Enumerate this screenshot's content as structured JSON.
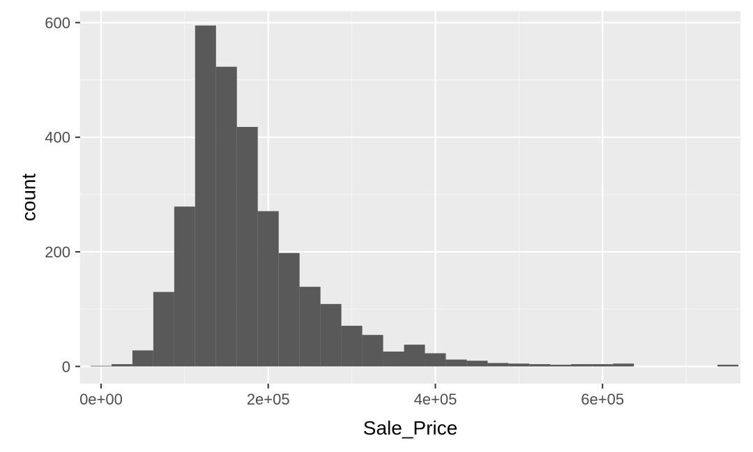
{
  "chart_data": {
    "type": "bar",
    "xlabel": "Sale_Price",
    "ylabel": "count",
    "xlim": [
      -25000,
      765000
    ],
    "ylim": [
      -30,
      620
    ],
    "x_ticks": [
      {
        "value": 0,
        "label": "0e+00"
      },
      {
        "value": 200000,
        "label": "2e+05"
      },
      {
        "value": 400000,
        "label": "4e+05"
      },
      {
        "value": 600000,
        "label": "6e+05"
      }
    ],
    "x_minor_ticks": [
      100000,
      300000,
      500000,
      700000
    ],
    "y_ticks": [
      {
        "value": 0,
        "label": "0"
      },
      {
        "value": 200,
        "label": "200"
      },
      {
        "value": 400,
        "label": "400"
      },
      {
        "value": 600,
        "label": "600"
      }
    ],
    "y_minor_ticks": [
      100,
      300,
      500
    ],
    "bin_width": 25000,
    "bins": [
      {
        "x0": -12500,
        "x1": 12500,
        "count": 1
      },
      {
        "x0": 12500,
        "x1": 37500,
        "count": 4
      },
      {
        "x0": 37500,
        "x1": 62500,
        "count": 28
      },
      {
        "x0": 62500,
        "x1": 87500,
        "count": 130
      },
      {
        "x0": 87500,
        "x1": 112500,
        "count": 279
      },
      {
        "x0": 112500,
        "x1": 137500,
        "count": 595
      },
      {
        "x0": 137500,
        "x1": 162500,
        "count": 523
      },
      {
        "x0": 162500,
        "x1": 187500,
        "count": 418
      },
      {
        "x0": 187500,
        "x1": 212500,
        "count": 271
      },
      {
        "x0": 212500,
        "x1": 237500,
        "count": 198
      },
      {
        "x0": 237500,
        "x1": 262500,
        "count": 139
      },
      {
        "x0": 262500,
        "x1": 287500,
        "count": 109
      },
      {
        "x0": 287500,
        "x1": 312500,
        "count": 71
      },
      {
        "x0": 312500,
        "x1": 337500,
        "count": 55
      },
      {
        "x0": 337500,
        "x1": 362500,
        "count": 26
      },
      {
        "x0": 362500,
        "x1": 387500,
        "count": 38
      },
      {
        "x0": 387500,
        "x1": 412500,
        "count": 23
      },
      {
        "x0": 412500,
        "x1": 437500,
        "count": 12
      },
      {
        "x0": 437500,
        "x1": 462500,
        "count": 10
      },
      {
        "x0": 462500,
        "x1": 487500,
        "count": 6
      },
      {
        "x0": 487500,
        "x1": 512500,
        "count": 5
      },
      {
        "x0": 512500,
        "x1": 537500,
        "count": 4
      },
      {
        "x0": 537500,
        "x1": 562500,
        "count": 3
      },
      {
        "x0": 562500,
        "x1": 587500,
        "count": 4
      },
      {
        "x0": 587500,
        "x1": 612500,
        "count": 4
      },
      {
        "x0": 612500,
        "x1": 637500,
        "count": 5
      },
      {
        "x0": 637500,
        "x1": 662500,
        "count": 0
      },
      {
        "x0": 662500,
        "x1": 687500,
        "count": 0
      },
      {
        "x0": 687500,
        "x1": 712500,
        "count": 0
      },
      {
        "x0": 712500,
        "x1": 737500,
        "count": 0
      },
      {
        "x0": 737500,
        "x1": 762500,
        "count": 3
      }
    ],
    "grid": true,
    "colors": {
      "panel_background": "#ebebeb",
      "grid_major": "#ffffff",
      "grid_minor": "#f5f5f5",
      "bar_fill": "#595959",
      "tick_text": "#4d4d4d",
      "tick_mark": "#333333",
      "axis_title": "#000000"
    }
  }
}
